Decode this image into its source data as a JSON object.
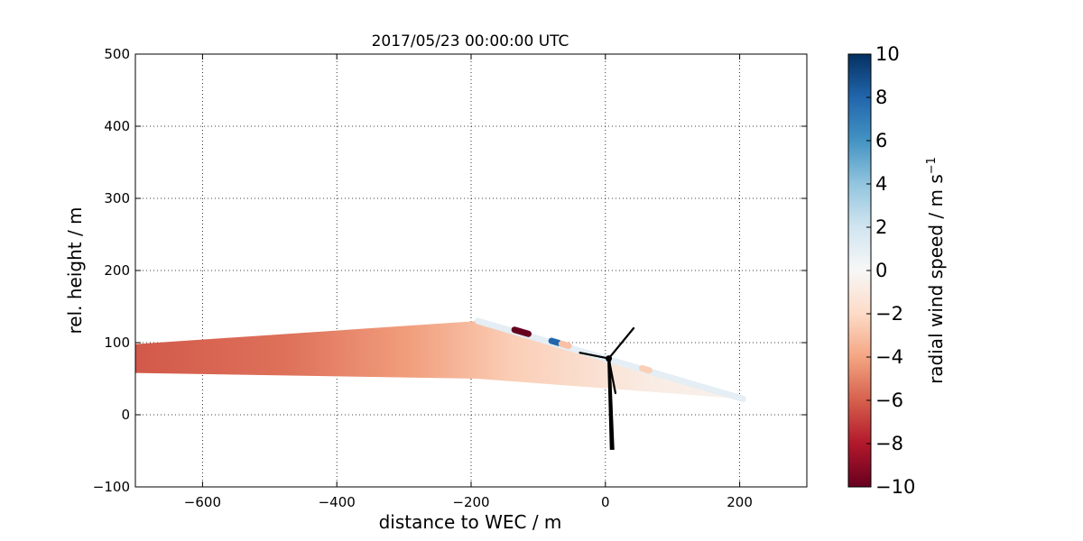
{
  "chart_data": {
    "type": "scatter",
    "title": "2017/05/23 00:00:00 UTC",
    "xlabel": "distance to WEC / m",
    "ylabel": "rel. height / m",
    "xlim": [
      -700,
      300
    ],
    "ylim": [
      -100,
      500
    ],
    "xticks": [
      -600,
      -400,
      -200,
      0,
      200
    ],
    "yticks": [
      -100,
      0,
      100,
      200,
      300,
      400,
      500
    ],
    "grid": true,
    "colorbar": {
      "label": "radial wind speed / m s",
      "label_superscript": "−1",
      "range": [
        -10,
        10
      ],
      "ticks": [
        10,
        8,
        6,
        4,
        2,
        0,
        -2,
        -4,
        -6,
        -8,
        -10
      ],
      "colormap": "RdBu",
      "colors": [
        "#67001f",
        "#b2182b",
        "#d6604d",
        "#f4a582",
        "#fddbc7",
        "#f7f7f7",
        "#d1e5f0",
        "#92c5de",
        "#4393c3",
        "#2166ac",
        "#053061"
      ]
    },
    "rhi_scan": {
      "description": "fan-shaped sector of radial wind speed measurements",
      "inner_edge": {
        "x": [
          -700,
          -190,
          205
        ],
        "y": [
          58,
          50,
          22
        ]
      },
      "outer_edge": {
        "x": [
          -700,
          -190
        ],
        "y": [
          98,
          130
        ]
      },
      "far_values": [
        -6.2,
        -5.5,
        -4.2,
        -2.5,
        -0.8
      ]
    },
    "beam": {
      "x": [
        -190,
        205
      ],
      "y": [
        130,
        22
      ],
      "value": 1.0,
      "highlights": [
        {
          "x": -125,
          "y": 115,
          "value": -10
        },
        {
          "x": -75,
          "y": 101,
          "value": 8
        },
        {
          "x": -60,
          "y": 97,
          "value": -3
        },
        {
          "x": 60,
          "y": 63,
          "value": -2.5
        }
      ]
    },
    "turbine": {
      "hub": {
        "x": 5,
        "y": 78
      },
      "tower_base": {
        "x": 10,
        "y": -48
      },
      "blade_tips": [
        {
          "x": 42,
          "y": 120
        },
        {
          "x": 15,
          "y": 30
        },
        {
          "x": -38,
          "y": 86
        }
      ]
    }
  }
}
